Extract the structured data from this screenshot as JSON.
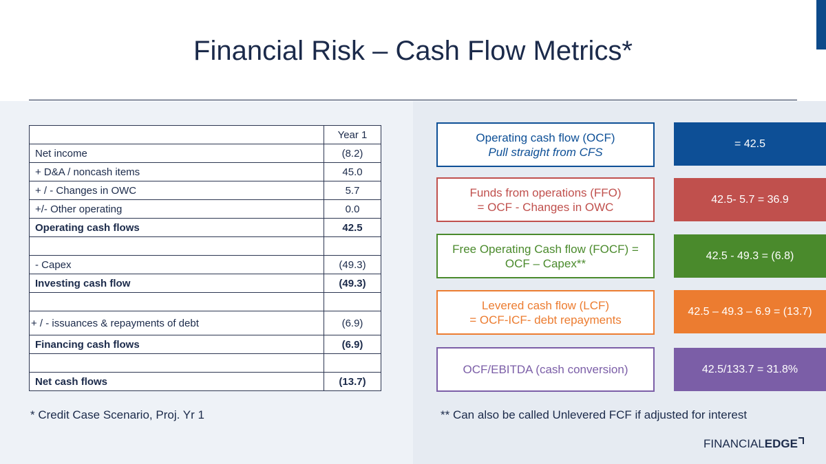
{
  "title": "Financial Risk – Cash Flow Metrics*",
  "table": {
    "header": "Year 1",
    "rows": [
      {
        "label": "Net income",
        "value": "(8.2)",
        "bold": false
      },
      {
        "label": "+ D&A / noncash items",
        "value": "45.0",
        "bold": false
      },
      {
        "label": "+ / - Changes in OWC",
        "value": "5.7",
        "bold": false
      },
      {
        "label": "+/- Other operating",
        "value": "0.0",
        "bold": false
      },
      {
        "label": "Operating cash flows",
        "value": "42.5",
        "bold": true
      },
      {
        "label": "",
        "value": "",
        "bold": false
      },
      {
        "label": " - Capex",
        "value": "(49.3)",
        "bold": false
      },
      {
        "label": "Investing cash flow",
        "value": "(49.3)",
        "bold": true
      },
      {
        "label": "",
        "value": "",
        "bold": false
      },
      {
        "label": "+ / - issuances & repayments of debt",
        "value": "(6.9)",
        "bold": false
      },
      {
        "label": "Financing cash flows",
        "value": "(6.9)",
        "bold": true
      },
      {
        "label": "",
        "value": "",
        "bold": false
      },
      {
        "label": "Net cash flows",
        "value": "(13.7)",
        "bold": true
      }
    ]
  },
  "metrics": [
    {
      "line1": "Operating cash flow (OCF)",
      "line2": "Pull straight from CFS",
      "line2_italic": true,
      "result": "= 42.5",
      "color": "#0d4f96"
    },
    {
      "line1": "Funds from operations (FFO)",
      "line2": "= OCF - Changes in OWC",
      "line2_italic": false,
      "result": "42.5- 5.7 = 36.9",
      "color": "#c0504d"
    },
    {
      "line1": "Free Operating Cash flow (FOCF) =",
      "line2": "OCF – Capex**",
      "line2_italic": false,
      "result": "42.5 - 49.3 = (6.8)",
      "color": "#4a8a2c"
    },
    {
      "line1": "Levered cash flow (LCF)",
      "line2": "= OCF-ICF- debt repayments",
      "line2_italic": false,
      "result": "42.5 – 49.3 – 6.9 = (13.7)",
      "color": "#ec7c30"
    },
    {
      "line1": "OCF/EBITDA (cash conversion)",
      "line2": "",
      "line2_italic": false,
      "result": "42.5/133.7 = 31.8%",
      "color": "#7b5ea7"
    }
  ],
  "footnote_left": "* Credit Case Scenario, Proj. Yr 1",
  "footnote_right": "** Can also be called Unlevered FCF if adjusted for interest",
  "logo": {
    "part1": "FINANCIAL",
    "part2": "EDGE"
  }
}
